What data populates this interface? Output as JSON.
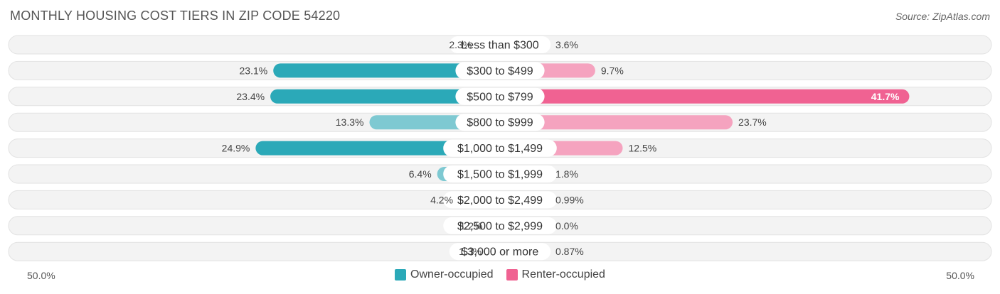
{
  "header": {
    "title": "MONTHLY HOUSING COST TIERS IN ZIP CODE 54220",
    "source": "Source: ZipAtlas.com"
  },
  "colors": {
    "owner": "#2ba9b8",
    "owner_light": "#7ec9d2",
    "renter": "#f06292",
    "renter_light": "#f5a3bf",
    "track": "#f0f0f0"
  },
  "chart_data": {
    "type": "bar",
    "orientation": "horizontal-diverging",
    "title": "MONTHLY HOUSING COST TIERS IN ZIP CODE 54220",
    "categories": [
      "Less than $300",
      "$300 to $499",
      "$500 to $799",
      "$800 to $999",
      "$1,000 to $1,499",
      "$1,500 to $1,999",
      "$2,000 to $2,499",
      "$2,500 to $2,999",
      "$3,000 or more"
    ],
    "series": [
      {
        "name": "Owner-occupied",
        "values": [
          2.3,
          23.1,
          23.4,
          13.3,
          24.9,
          6.4,
          4.2,
          1.2,
          1.3
        ],
        "labels": [
          "2.3%",
          "23.1%",
          "23.4%",
          "13.3%",
          "24.9%",
          "6.4%",
          "4.2%",
          "1.2%",
          "1.3%"
        ]
      },
      {
        "name": "Renter-occupied",
        "values": [
          3.6,
          9.7,
          41.7,
          23.7,
          12.5,
          1.8,
          0.99,
          0.0,
          0.87
        ],
        "labels": [
          "3.6%",
          "9.7%",
          "41.7%",
          "23.7%",
          "12.5%",
          "1.8%",
          "0.99%",
          "0.0%",
          "0.87%"
        ]
      }
    ],
    "axis_max": 50,
    "axis_min_label": "50.0%",
    "axis_max_label": "50.0%",
    "legend_position": "bottom-center"
  }
}
